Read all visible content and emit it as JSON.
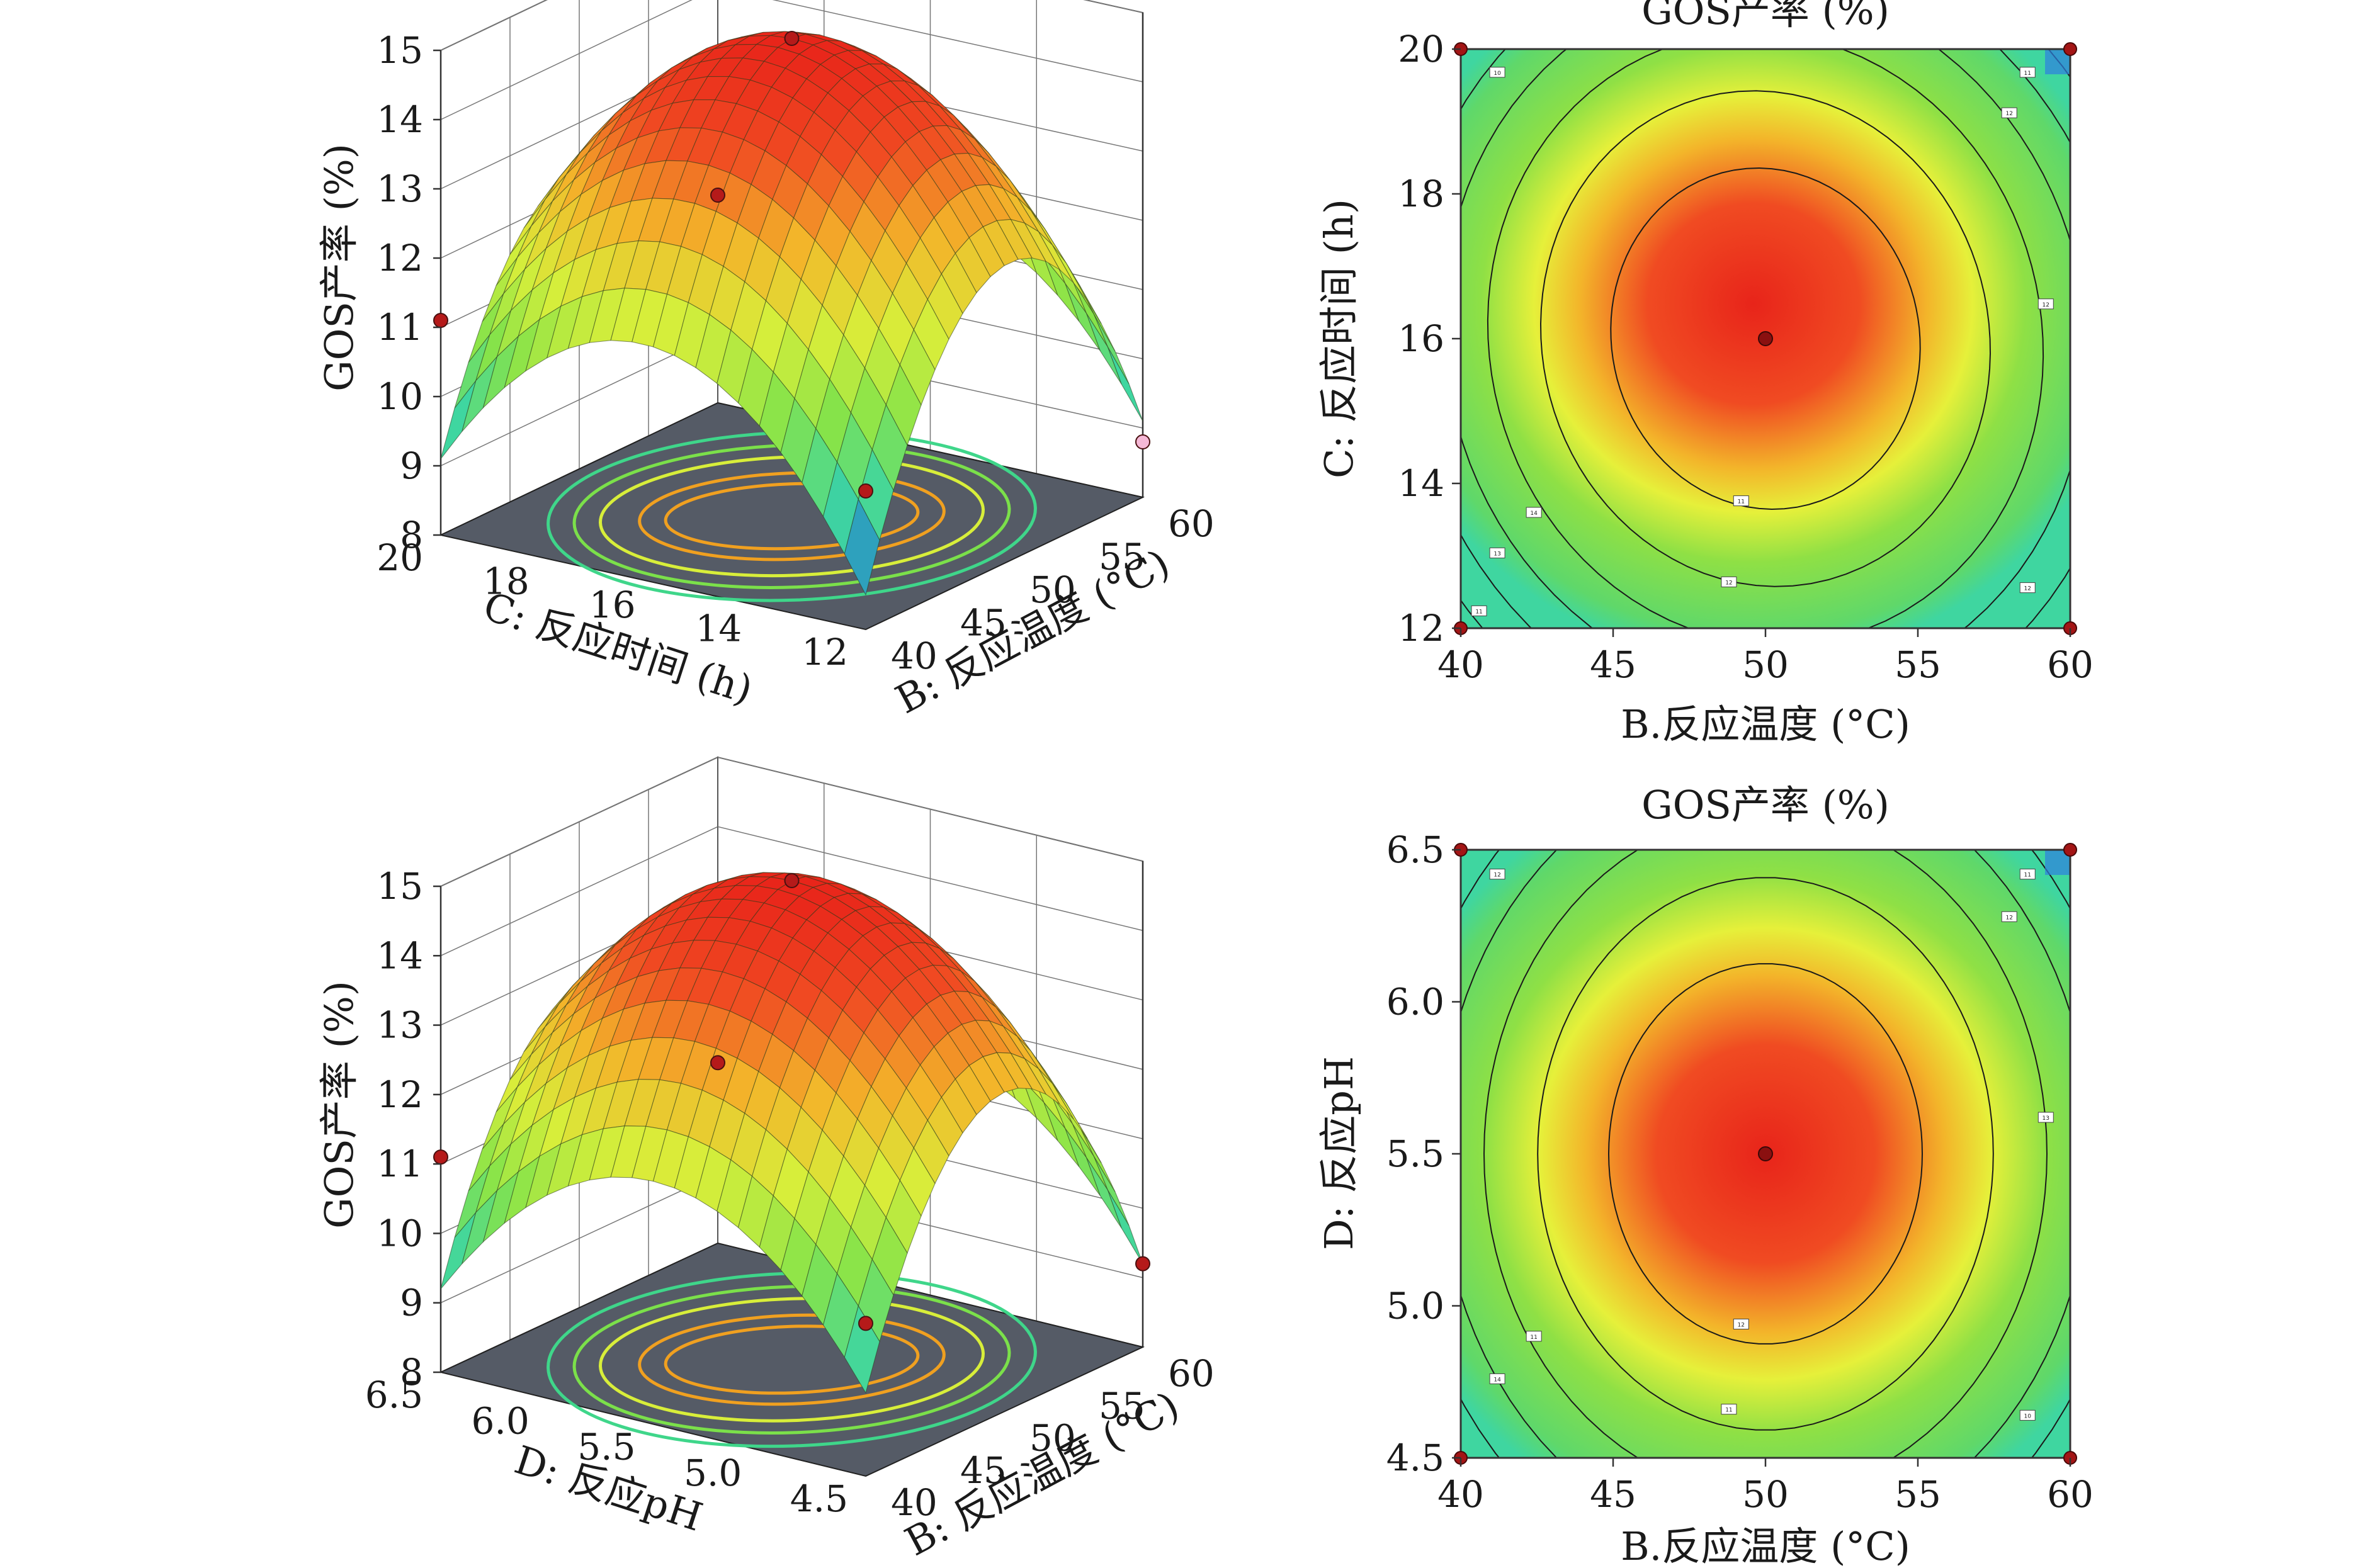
{
  "chart_data": [
    {
      "type": "surface3d",
      "z_title": "GOS产率 (%)",
      "z_ticks": [
        "8",
        "9",
        "10",
        "11",
        "12",
        "13",
        "14",
        "15"
      ],
      "zlim": [
        8,
        15
      ],
      "x_title": "B: 反应温度 (°C)",
      "x_ticks": [
        "40",
        "45",
        "50",
        "55",
        "60"
      ],
      "xlim": [
        40,
        60
      ],
      "y_title": "C: 反应时间 (h)",
      "y_ticks": [
        "12",
        "14",
        "16",
        "18",
        "20"
      ],
      "ylim": [
        12,
        20
      ],
      "response": {
        "center": 14.9,
        "b_quad": -3.5,
        "y_quad": -2.6,
        "cross": -0.3
      },
      "design_points": [
        {
          "x": 50,
          "y": 16,
          "z": 14.9
        },
        {
          "x": 40,
          "y": 20,
          "z": 11.1
        },
        {
          "x": 60,
          "y": 12,
          "z": 8.8
        },
        {
          "x": 60,
          "y": 20,
          "z": 11.0
        },
        {
          "x": 40,
          "y": 12,
          "z": 10.0
        }
      ],
      "colorscale": [
        "#1e6fd9",
        "#3fd6a0",
        "#86e34a",
        "#d8ee3a",
        "#f3b52a",
        "#f04b22",
        "#e8241a"
      ]
    },
    {
      "type": "contour",
      "title": "GOS产率 (%)",
      "x_title": "B.反应温度 (°C)",
      "x_ticks": [
        "40",
        "45",
        "50",
        "55",
        "60"
      ],
      "xlim": [
        40,
        60
      ],
      "y_title": "C: 反应时间 (h)",
      "y_ticks": [
        "12",
        "14",
        "16",
        "18",
        "20"
      ],
      "ylim": [
        12,
        20
      ],
      "response": {
        "center": 14.9,
        "b_quad": -3.5,
        "y_quad": -2.6,
        "cross": -0.3
      },
      "contour_levels": [
        9,
        10,
        11,
        12,
        13,
        14
      ],
      "contour_labels": [
        "10",
        "11",
        "12",
        "12",
        "13",
        "14",
        "11",
        "12",
        "12",
        "11"
      ],
      "center_point": {
        "x": 50,
        "y": 16
      },
      "design_points": [
        {
          "x": 40,
          "y": 20
        },
        {
          "x": 60,
          "y": 20
        },
        {
          "x": 40,
          "y": 12
        },
        {
          "x": 60,
          "y": 12
        }
      ]
    },
    {
      "type": "surface3d",
      "z_title": "GOS产率 (%)",
      "z_ticks": [
        "8",
        "9",
        "10",
        "11",
        "12",
        "13",
        "14",
        "15"
      ],
      "zlim": [
        8,
        15
      ],
      "x_title": "B: 反应温度 (°C)",
      "x_ticks": [
        "40",
        "45",
        "50",
        "55",
        "60"
      ],
      "xlim": [
        40,
        60
      ],
      "y_title": "D: 反应pH",
      "y_ticks": [
        "4.5",
        "5.0",
        "5.5",
        "6.0",
        "6.5"
      ],
      "ylim": [
        4.5,
        6.5
      ],
      "response": {
        "center": 14.9,
        "b_quad": -3.4,
        "y_quad": -2.3,
        "cross": 0.0
      },
      "design_points": [
        {
          "x": 50,
          "y": 5.5,
          "z": 14.9
        },
        {
          "x": 40,
          "y": 6.5,
          "z": 11.1
        },
        {
          "x": 60,
          "y": 4.5,
          "z": 9.2
        },
        {
          "x": 60,
          "y": 6.5,
          "z": 10.6
        },
        {
          "x": 40,
          "y": 4.5,
          "z": 10.2
        }
      ],
      "colorscale": [
        "#1e6fd9",
        "#3fd6a0",
        "#86e34a",
        "#d8ee3a",
        "#f3b52a",
        "#f04b22",
        "#e8241a"
      ]
    },
    {
      "type": "contour",
      "title": "GOS产率 (%)",
      "x_title": "B.反应温度 (°C)",
      "x_ticks": [
        "40",
        "45",
        "50",
        "55",
        "60"
      ],
      "xlim": [
        40,
        60
      ],
      "y_title": "D: 反应pH",
      "y_ticks": [
        "4.5",
        "5.0",
        "5.5",
        "6.0",
        "6.5"
      ],
      "ylim": [
        4.5,
        6.5
      ],
      "response": {
        "center": 14.9,
        "b_quad": -3.4,
        "y_quad": -2.3,
        "cross": 0.0
      },
      "contour_levels": [
        10,
        11,
        12,
        13,
        14
      ],
      "contour_labels": [
        "12",
        "11",
        "12",
        "13",
        "14",
        "11",
        "12",
        "11",
        "10"
      ],
      "center_point": {
        "x": 50,
        "y": 5.5
      },
      "design_points": [
        {
          "x": 40,
          "y": 6.5
        },
        {
          "x": 60,
          "y": 6.5
        },
        {
          "x": 40,
          "y": 4.5
        },
        {
          "x": 60,
          "y": 4.5
        }
      ]
    }
  ]
}
